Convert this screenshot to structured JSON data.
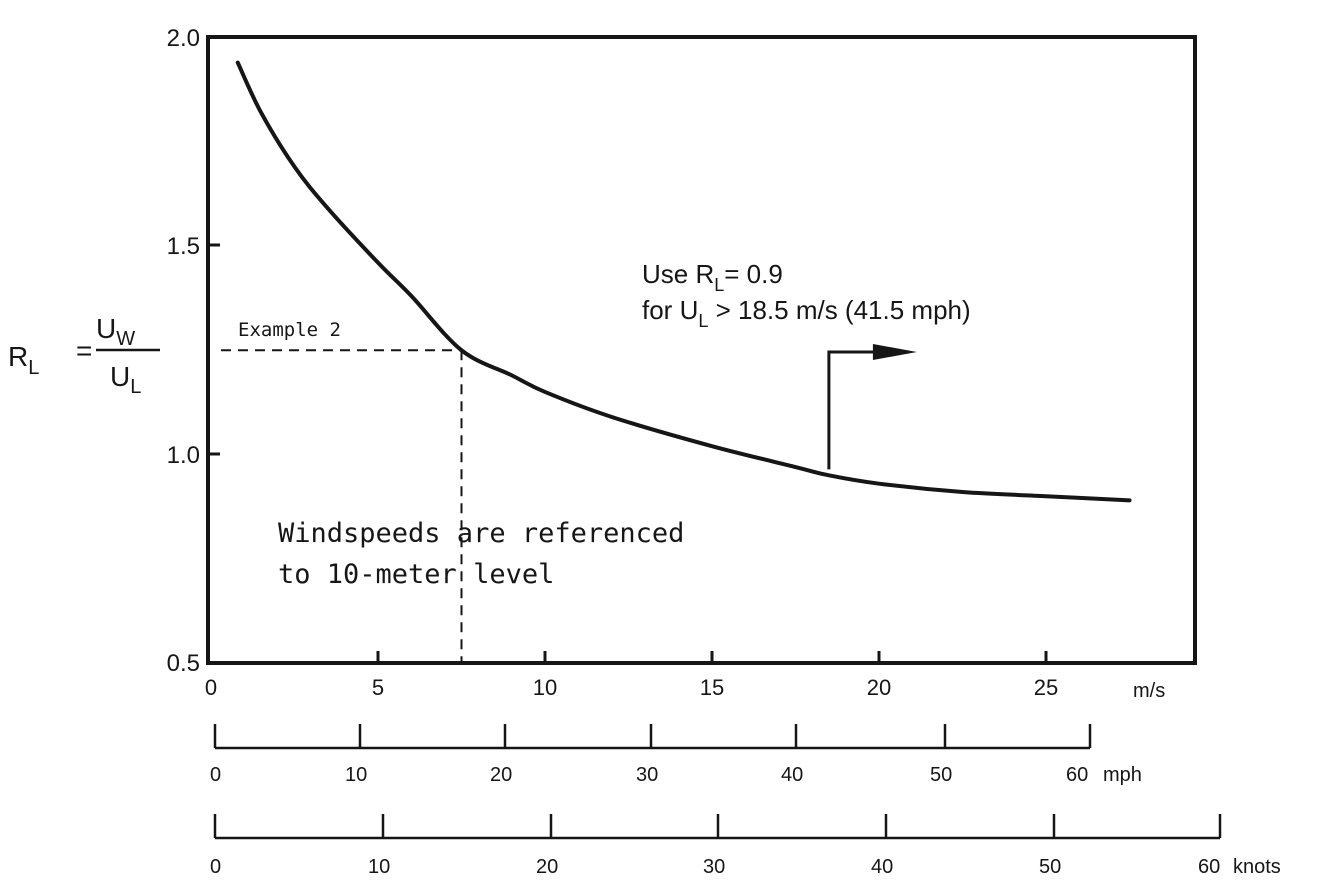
{
  "chart_data": {
    "type": "line",
    "x": [
      0.8,
      1.5,
      2.5,
      3.5,
      5,
      6,
      7.5,
      9,
      10,
      12,
      15,
      17.5,
      18.5,
      20,
      22.5,
      25,
      27.5
    ],
    "series": [
      {
        "values": [
          1.94,
          1.82,
          1.69,
          1.59,
          1.46,
          1.38,
          1.25,
          1.19,
          1.15,
          1.09,
          1.02,
          0.97,
          0.95,
          0.93,
          0.91,
          0.9,
          0.89
        ]
      }
    ],
    "xlim": [
      0,
      29.5
    ],
    "ylim": [
      0.5,
      2.0
    ],
    "yticks": [
      "2.0",
      "1.5",
      "1.0",
      "0.5"
    ],
    "xticks": [
      "0",
      "5",
      "10",
      "15",
      "20",
      "25"
    ],
    "xunit": "m/s",
    "ylabel": {
      "lhs_main": "R",
      "lhs_sub": "L",
      "equals": "=",
      "num_main": "U",
      "num_sub": "W",
      "den_main": "U",
      "den_sub": "L"
    },
    "mph_axis": {
      "ticks": [
        "0",
        "10",
        "20",
        "30",
        "40",
        "50",
        "60"
      ],
      "unit": "mph"
    },
    "knots_axis": {
      "ticks": [
        "0",
        "10",
        "20",
        "30",
        "40",
        "50",
        "60"
      ],
      "unit": "knots"
    },
    "example": {
      "label": "Example 2",
      "x": 7.5,
      "y": 1.25
    },
    "note": {
      "line1": "Windspeeds are referenced",
      "line2": "to 10-meter level"
    },
    "callout": {
      "x": 18.5,
      "y": 0.95,
      "line1_a": "Use R",
      "line1_sub": "L",
      "line1_b": "= 0.9",
      "line2_a": "for U",
      "line2_sub": "L",
      "line2_b": " > 18.5 m/s (41.5 mph)"
    },
    "grid": false,
    "legend": "none",
    "colors": {
      "ink": "#161616",
      "background": "#ffffff"
    }
  }
}
